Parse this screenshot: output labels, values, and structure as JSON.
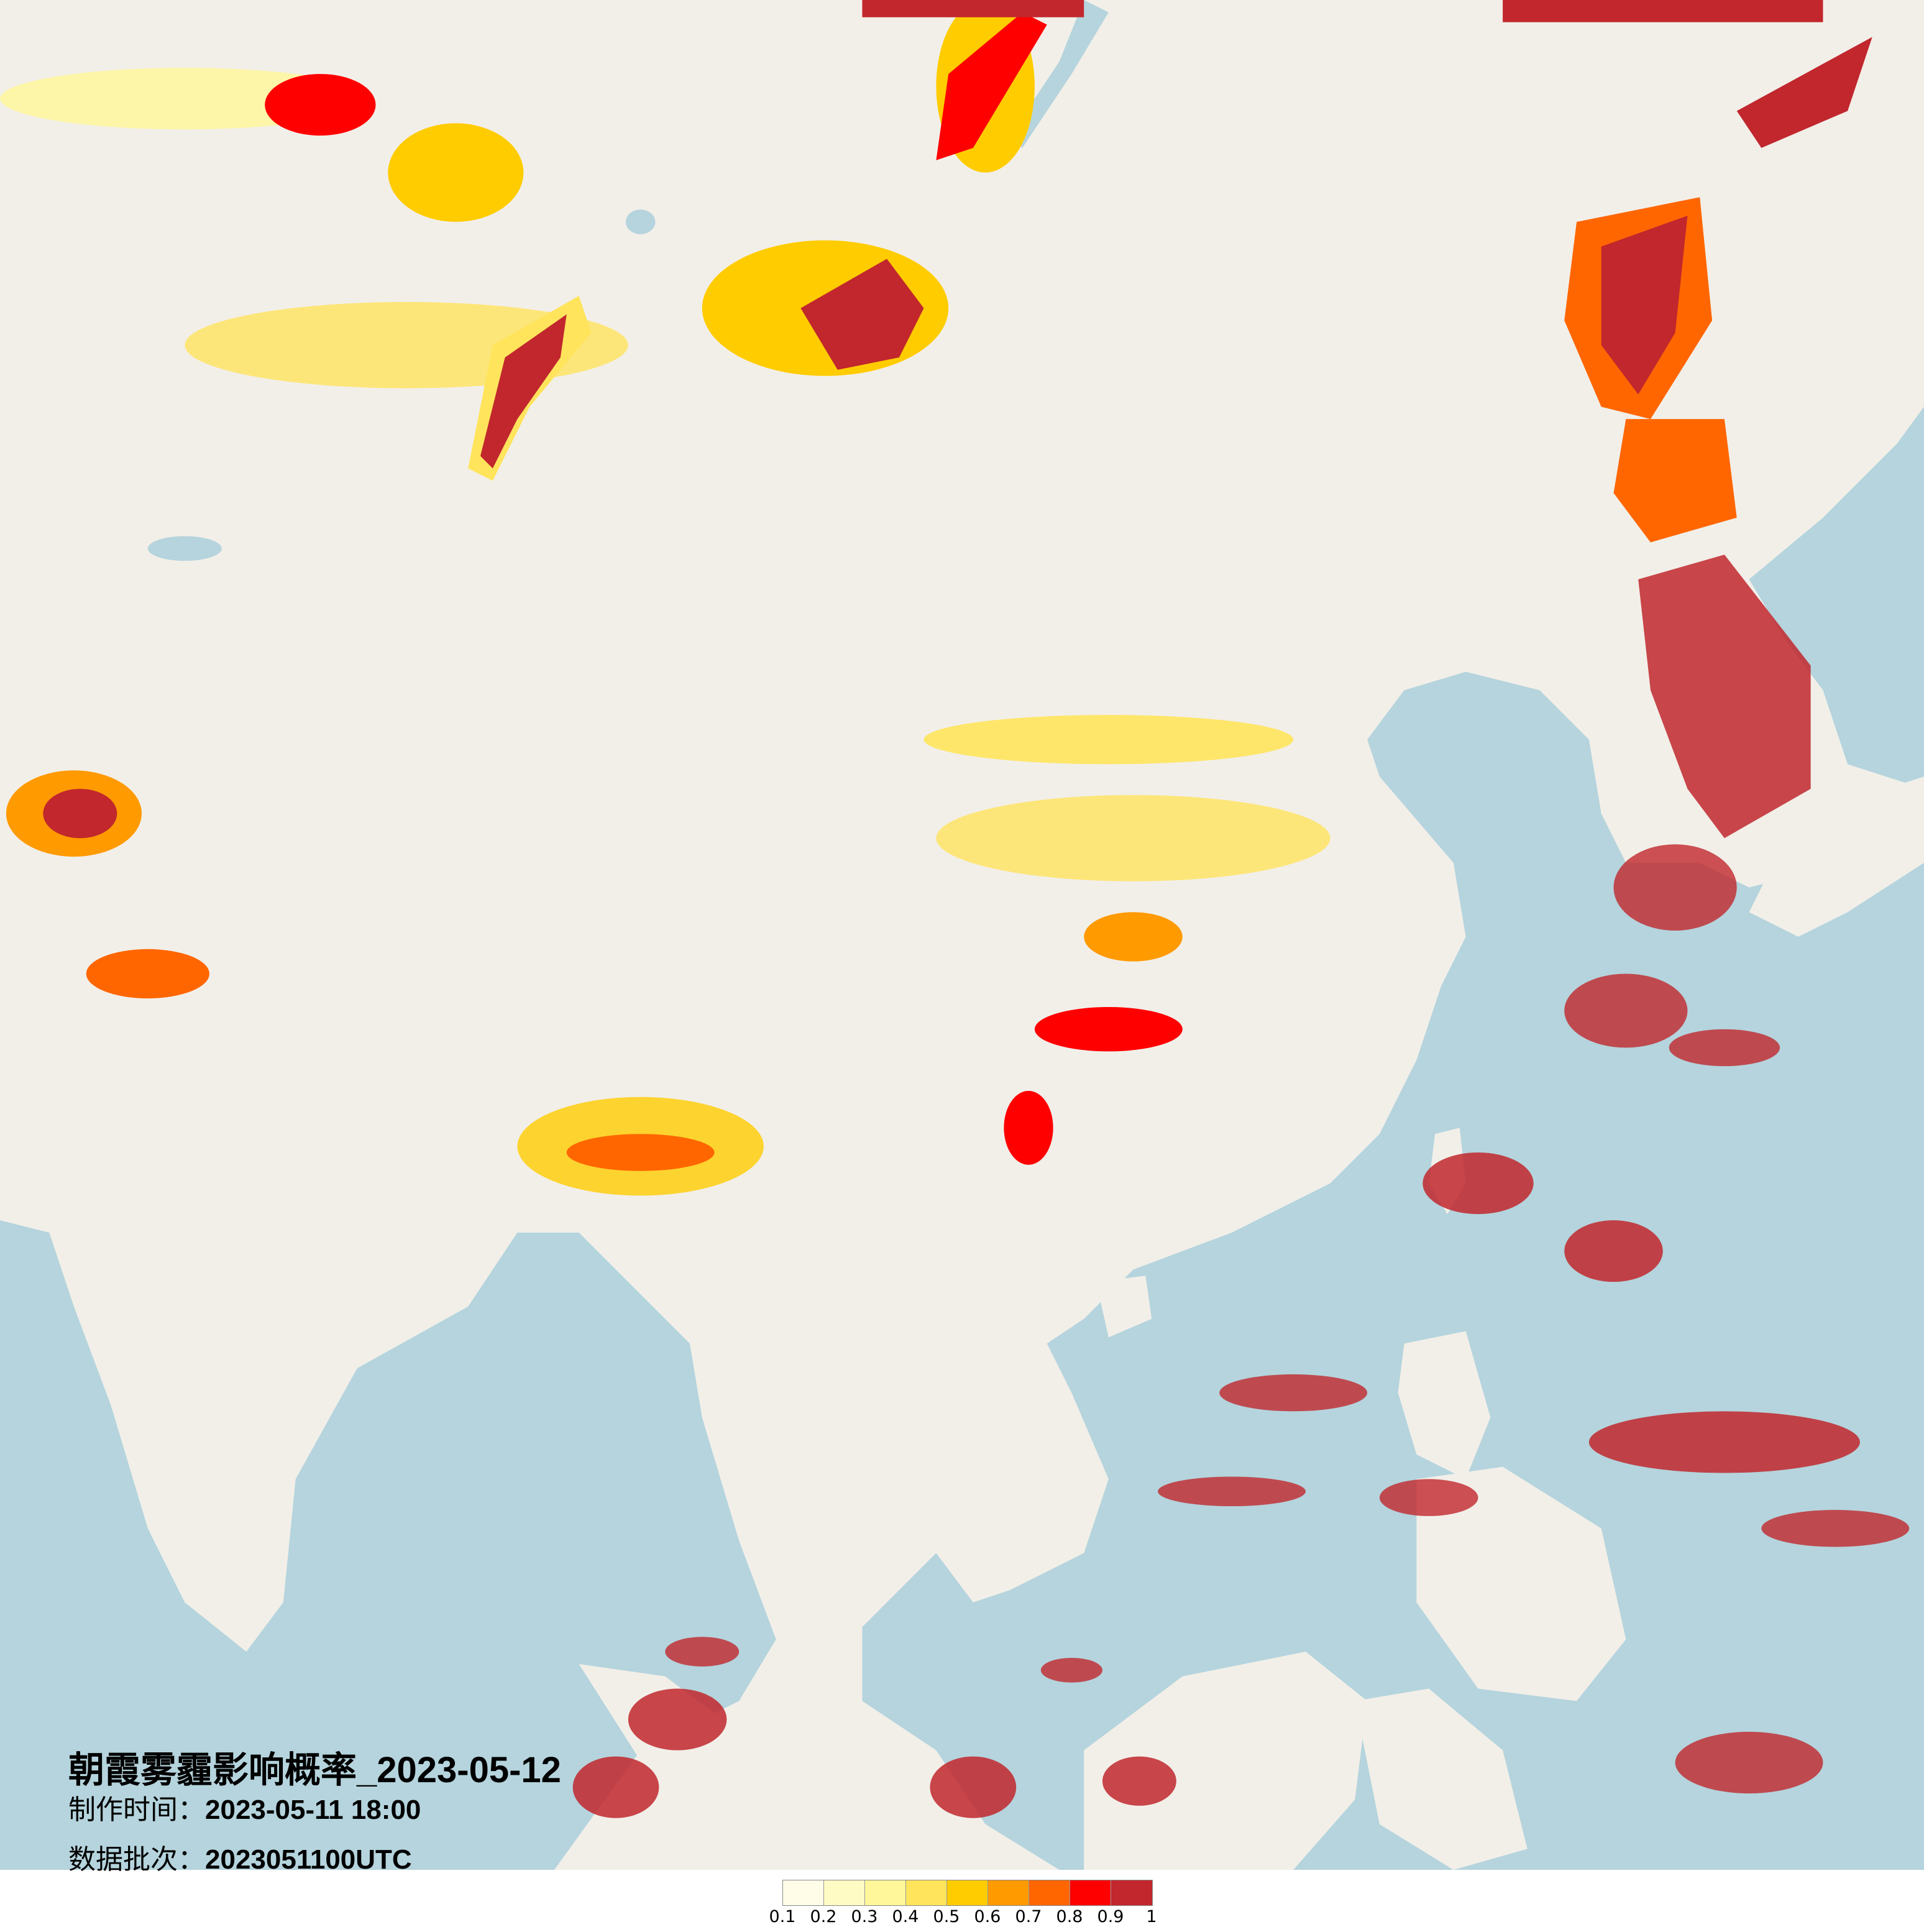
{
  "title": "朝霞雾霾影响概率_2023-05-12",
  "production_time": {
    "label": "制作时间：",
    "value": "2023-05-11 18:00"
  },
  "data_batch": {
    "label": "数据批次：",
    "value": "2023051100UTC"
  },
  "legend": {
    "colors": [
      "#fffde8",
      "#fffbc4",
      "#fff799",
      "#ffe45c",
      "#ffcc00",
      "#ff9a00",
      "#ff6600",
      "#ff0000",
      "#c1272d"
    ],
    "labels": [
      "0.1",
      "0.2",
      "0.3",
      "0.4",
      "0.5",
      "0.6",
      "0.7",
      "0.8",
      "0.9",
      "1"
    ]
  },
  "map_colors": {
    "land": "#f2efe9",
    "sea": "#b5d4dd"
  }
}
